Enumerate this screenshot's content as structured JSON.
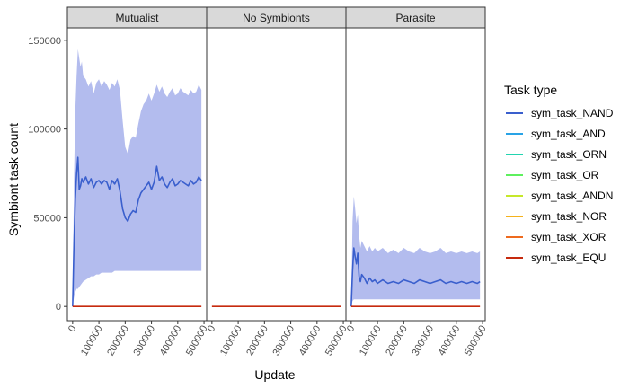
{
  "chart_data": {
    "type": "line",
    "xlabel": "Update",
    "ylabel": "Symbiont task count",
    "xlim": [
      -20000,
      510000
    ],
    "ylim": [
      -8000,
      157000
    ],
    "x_ticks": [
      0,
      100000,
      200000,
      300000,
      400000,
      500000
    ],
    "x_tick_labels": [
      "0",
      "100000",
      "200000",
      "300000",
      "400000",
      "500000"
    ],
    "y_ticks": [
      0,
      50000,
      100000,
      150000
    ],
    "y_tick_labels": [
      "0",
      "50000",
      "100000",
      "150000"
    ],
    "grid": false,
    "legend": {
      "title": "Task type",
      "position": "right",
      "entries": [
        {
          "name": "sym_task_NAND",
          "color": "#3a5fcd"
        },
        {
          "name": "sym_task_AND",
          "color": "#29a3e6"
        },
        {
          "name": "sym_task_ORN",
          "color": "#22d4b0"
        },
        {
          "name": "sym_task_OR",
          "color": "#5ef05e"
        },
        {
          "name": "sym_task_ANDN",
          "color": "#c6e82a"
        },
        {
          "name": "sym_task_NOR",
          "color": "#f5b21c"
        },
        {
          "name": "sym_task_XOR",
          "color": "#ee6a1e"
        },
        {
          "name": "sym_task_EQU",
          "color": "#c62a0e"
        }
      ]
    },
    "ribbon_color": "#b3bcee",
    "panels": [
      {
        "strip": "Mutualist",
        "series": [
          {
            "name": "sym_task_NAND",
            "x": [
              0,
              5000,
              10000,
              15000,
              20000,
              25000,
              30000,
              35000,
              40000,
              50000,
              60000,
              70000,
              80000,
              90000,
              100000,
              110000,
              120000,
              130000,
              140000,
              150000,
              160000,
              170000,
              180000,
              190000,
              200000,
              210000,
              220000,
              230000,
              240000,
              250000,
              260000,
              270000,
              280000,
              290000,
              300000,
              310000,
              320000,
              330000,
              340000,
              350000,
              360000,
              370000,
              380000,
              390000,
              400000,
              410000,
              420000,
              430000,
              440000,
              450000,
              460000,
              470000,
              480000,
              490000
            ],
            "y": [
              0,
              35000,
              60000,
              75000,
              84000,
              66000,
              68000,
              72000,
              70000,
              73000,
              69000,
              72000,
              67000,
              70000,
              71000,
              69000,
              71000,
              70000,
              66000,
              71000,
              69000,
              72000,
              65000,
              55000,
              50000,
              48000,
              52000,
              54000,
              53000,
              60000,
              64000,
              66000,
              68000,
              70000,
              66000,
              70000,
              79000,
              71000,
              73000,
              69000,
              67000,
              70000,
              72000,
              68000,
              69000,
              71000,
              70000,
              69000,
              68000,
              71000,
              69000,
              70000,
              73000,
              71000
            ],
            "lower": [
              0,
              5000,
              8000,
              10000,
              10000,
              11000,
              12000,
              13000,
              14000,
              15000,
              16000,
              17000,
              17000,
              18000,
              18000,
              19000,
              19000,
              19000,
              19000,
              19000,
              20000,
              20000,
              20000,
              20000,
              20000,
              20000,
              20000,
              20000,
              20000,
              20000,
              20000,
              20000,
              20000,
              20000,
              20000,
              20000,
              20000,
              20000,
              20000,
              20000,
              20000,
              20000,
              20000,
              20000,
              20000,
              20000,
              20000,
              20000,
              20000,
              20000,
              20000,
              20000,
              20000,
              20000
            ],
            "upper": [
              0,
              70000,
              110000,
              130000,
              145000,
              140000,
              135000,
              138000,
              130000,
              128000,
              124000,
              127000,
              120000,
              126000,
              128000,
              124000,
              127000,
              125000,
              122000,
              126000,
              124000,
              128000,
              122000,
              105000,
              90000,
              86000,
              94000,
              96000,
              95000,
              103000,
              110000,
              114000,
              116000,
              120000,
              116000,
              120000,
              125000,
              121000,
              124000,
              120000,
              118000,
              121000,
              123000,
              119000,
              120000,
              123000,
              121000,
              120000,
              119000,
              122000,
              120000,
              121000,
              125000,
              122000
            ]
          },
          {
            "name": "sym_task_EQU",
            "x": [
              0,
              490000
            ],
            "y": [
              0,
              0
            ]
          }
        ]
      },
      {
        "strip": "No Symbionts",
        "series": [
          {
            "name": "sym_task_EQU",
            "x": [
              0,
              490000
            ],
            "y": [
              0,
              0
            ]
          }
        ]
      },
      {
        "strip": "Parasite",
        "series": [
          {
            "name": "sym_task_NAND",
            "x": [
              0,
              5000,
              10000,
              15000,
              20000,
              25000,
              30000,
              35000,
              40000,
              50000,
              60000,
              70000,
              80000,
              90000,
              100000,
              120000,
              140000,
              160000,
              180000,
              200000,
              220000,
              240000,
              260000,
              280000,
              300000,
              320000,
              340000,
              360000,
              380000,
              400000,
              420000,
              440000,
              460000,
              480000,
              490000
            ],
            "y": [
              0,
              20000,
              33000,
              28000,
              24000,
              30000,
              17000,
              14000,
              18000,
              16000,
              13000,
              16000,
              14000,
              15000,
              13000,
              15000,
              13000,
              14000,
              13000,
              15000,
              14000,
              13000,
              15000,
              14000,
              13000,
              14000,
              15000,
              13000,
              14000,
              13000,
              14000,
              13000,
              14000,
              13000,
              14000
            ],
            "lower": [
              0,
              3000,
              4000,
              4000,
              4000,
              4000,
              4000,
              4000,
              4000,
              4000,
              4000,
              4000,
              4000,
              4000,
              4000,
              4000,
              4000,
              4000,
              4000,
              4000,
              4000,
              4000,
              4000,
              4000,
              4000,
              4000,
              4000,
              4000,
              4000,
              4000,
              4000,
              4000,
              4000,
              4000,
              4000
            ],
            "upper": [
              0,
              48000,
              62000,
              55000,
              47000,
              52000,
              40000,
              33000,
              37000,
              34000,
              31000,
              34000,
              31000,
              33000,
              31000,
              33000,
              30000,
              32000,
              30000,
              33000,
              31000,
              30000,
              33000,
              31000,
              30000,
              31000,
              33000,
              30000,
              31000,
              30000,
              31000,
              30000,
              31000,
              30000,
              31000
            ]
          },
          {
            "name": "sym_task_EQU",
            "x": [
              0,
              490000
            ],
            "y": [
              0,
              0
            ]
          }
        ]
      }
    ]
  }
}
